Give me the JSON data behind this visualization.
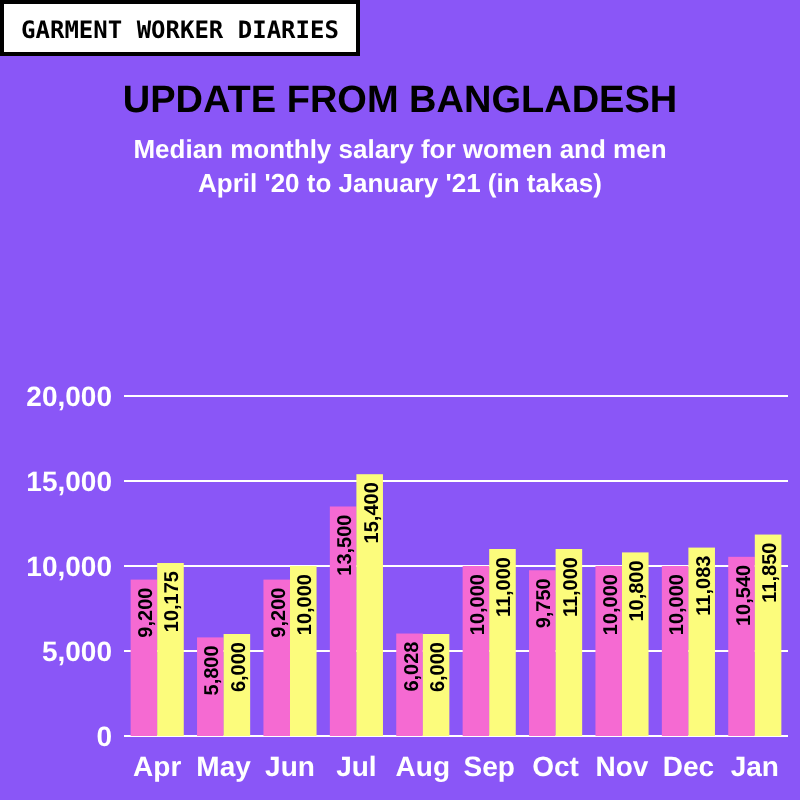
{
  "chart_data": {
    "type": "bar",
    "title": "UPDATE FROM BANGLADESH",
    "subtitle": "Median monthly salary for women and men\nApril '20 to January '21 (in takas)",
    "annotations": [
      "GARMENT WORKER DIARIES"
    ],
    "categories": [
      "Apr",
      "May",
      "Jun",
      "Jul",
      "Aug",
      "Sep",
      "Oct",
      "Nov",
      "Dec",
      "Jan"
    ],
    "series": [
      {
        "color": "#f56ad2",
        "values": [
          9200,
          5800,
          9200,
          13500,
          6028,
          10000,
          9750,
          10000,
          10000,
          10540
        ],
        "value_labels": [
          "9,200",
          "5,800",
          "9,200",
          "13,500",
          "6,028",
          "10,000",
          "9,750",
          "10,000",
          "10,000",
          "10,540"
        ]
      },
      {
        "color": "#fcfc7c",
        "values": [
          10175,
          6000,
          10000,
          15400,
          6000,
          11000,
          11000,
          10800,
          11083,
          11850
        ],
        "value_labels": [
          "10,175",
          "6,000",
          "10,000",
          "15,400",
          "6,000",
          "11,000",
          "11,000",
          "10,800",
          "11,083",
          "11,850"
        ]
      }
    ],
    "ylim": [
      0,
      20000
    ],
    "yticks": [
      {
        "value": 0,
        "label": "0"
      },
      {
        "value": 5000,
        "label": "5,000"
      },
      {
        "value": 10000,
        "label": "10,000"
      },
      {
        "value": 15000,
        "label": "15,000"
      },
      {
        "value": 20000,
        "label": "20,000"
      }
    ],
    "grid": "y"
  }
}
